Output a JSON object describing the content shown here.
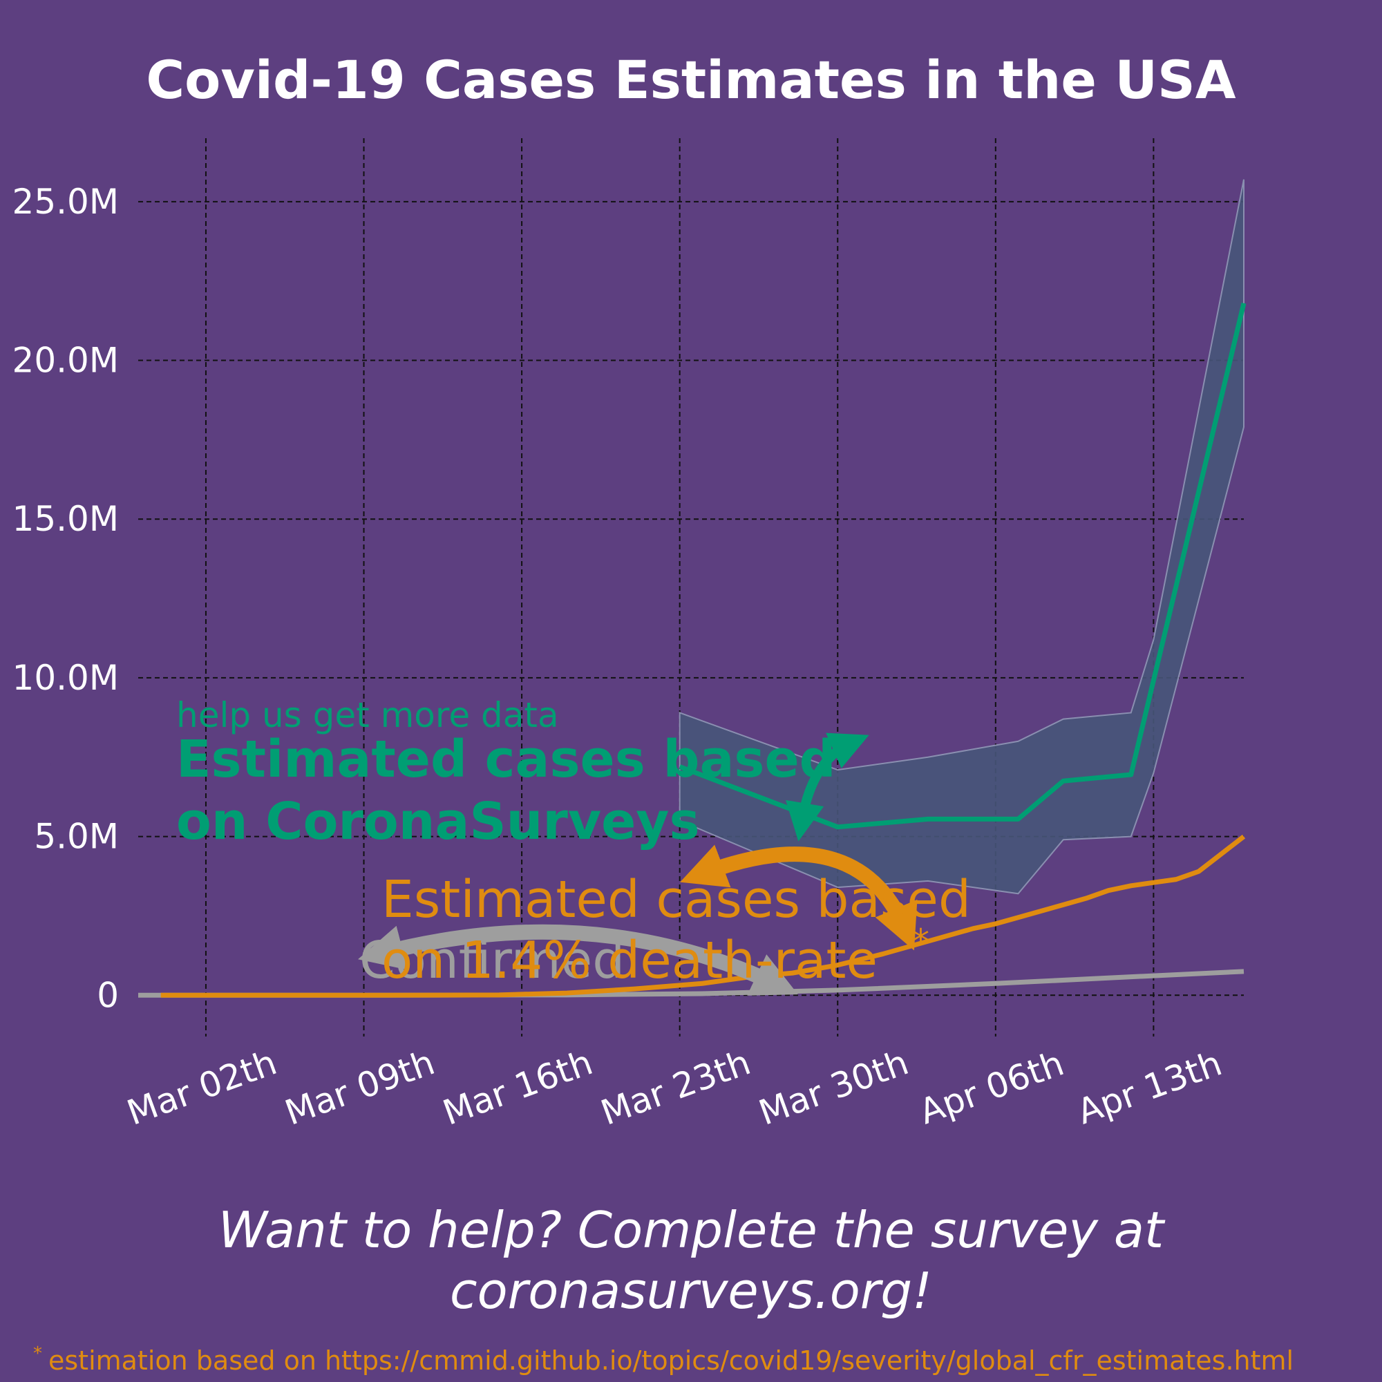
{
  "chart_data": {
    "type": "line",
    "title": "Covid-19 Cases Estimates in the USA",
    "xlabel": "",
    "ylabel": "",
    "x_range": [
      "2020-02-28",
      "2020-04-17"
    ],
    "ylim": [
      -1300000,
      27000000
    ],
    "y_ticks": [
      0,
      5000000,
      10000000,
      15000000,
      20000000,
      25000000
    ],
    "y_tick_labels": [
      "0",
      "5.0M",
      "10.0M",
      "15.0M",
      "20.0M",
      "25.0M"
    ],
    "x_ticks": [
      "2020-03-02",
      "2020-03-09",
      "2020-03-16",
      "2020-03-23",
      "2020-03-30",
      "2020-04-06",
      "2020-04-13"
    ],
    "x_tick_labels": [
      "Mar 02th",
      "Mar 09th",
      "Mar 16th",
      "Mar 23th",
      "Mar 30th",
      "Apr 06th",
      "Apr 13th"
    ],
    "grid": true,
    "colors": {
      "background": "#5d3f80",
      "coronasurveys": "#009e73",
      "death_rate": "#e08c10",
      "confirmed": "#9e9e9e",
      "band_fill": "#475579",
      "band_edge": "#8a8fb0",
      "grid": "#111111",
      "text": "#ffffff"
    },
    "series": [
      {
        "key": "coronasurveys",
        "x": [
          "2020-03-23",
          "2020-03-30",
          "2020-04-03",
          "2020-04-07",
          "2020-04-09",
          "2020-04-12",
          "2020-04-17"
        ],
        "values": [
          7200000,
          5300000,
          5550000,
          5550000,
          6750000,
          6950000,
          21800000
        ]
      },
      {
        "key": "death_rate",
        "x": [
          "2020-02-29",
          "2020-03-05",
          "2020-03-10",
          "2020-03-15",
          "2020-03-18",
          "2020-03-21",
          "2020-03-24",
          "2020-03-26",
          "2020-03-28",
          "2020-03-30",
          "2020-04-01",
          "2020-04-03",
          "2020-04-05",
          "2020-04-06",
          "2020-04-07",
          "2020-04-09",
          "2020-04-10",
          "2020-04-11",
          "2020-04-12",
          "2020-04-13",
          "2020-04-14",
          "2020-04-15",
          "2020-04-16",
          "2020-04-17"
        ],
        "values": [
          0,
          0,
          0,
          10000,
          70000,
          200000,
          370000,
          570000,
          700000,
          950000,
          1300000,
          1700000,
          2100000,
          2250000,
          2450000,
          2850000,
          3050000,
          3300000,
          3450000,
          3550000,
          3650000,
          3900000,
          4450000,
          5000000
        ]
      },
      {
        "key": "confirmed",
        "x": [
          "2020-02-28",
          "2020-03-10",
          "2020-03-18",
          "2020-03-24",
          "2020-03-30",
          "2020-04-06",
          "2020-04-12",
          "2020-04-17"
        ],
        "values": [
          0,
          1000,
          10000,
          50000,
          160000,
          370000,
          580000,
          750000
        ]
      }
    ],
    "band": {
      "x": [
        "2020-03-23",
        "2020-03-30",
        "2020-04-03",
        "2020-04-07",
        "2020-04-09",
        "2020-04-12",
        "2020-04-13",
        "2020-04-17"
      ],
      "upper": [
        8900000,
        7100000,
        7500000,
        8000000,
        8700000,
        8900000,
        11200000,
        25700000
      ],
      "lower": [
        5500000,
        3400000,
        3600000,
        3200000,
        4900000,
        5000000,
        7000000,
        17900000
      ]
    },
    "annotations": {
      "help_text": "help us get more data",
      "coronasurveys_line1": "Estimated cases based",
      "coronasurveys_line2": "on CoronaSurveys",
      "death_rate_line1": "Estimated cases based",
      "death_rate_line2": "on 1.4% death-rate",
      "death_rate_star": "*",
      "confirmed_label": "Confirmed",
      "cta_line1": "Want to help? Complete the survey at",
      "cta_line2": "coronasurveys.org!",
      "footnote_star": "*",
      "footnote": "estimation based on https://cmmid.github.io/topics/covid19/severity/global_cfr_estimates.html"
    }
  }
}
